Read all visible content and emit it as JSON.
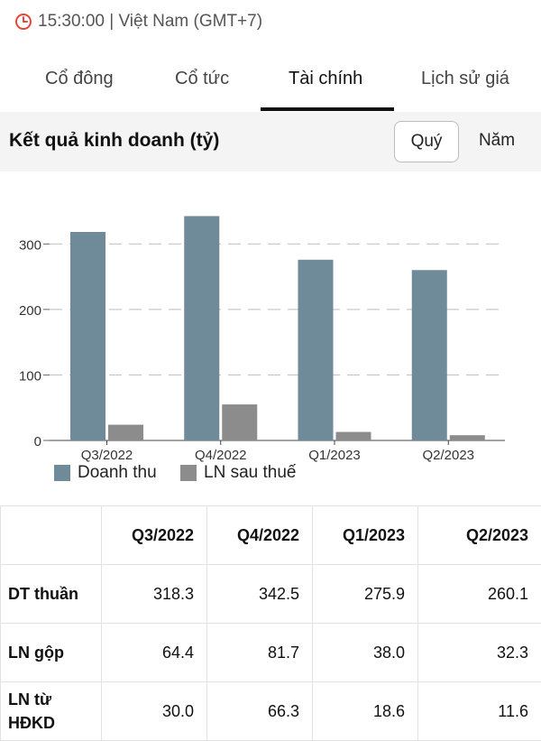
{
  "header": {
    "time_text": "15:30:00 | Việt Nam (GMT+7)",
    "clock_icon": "clock-icon",
    "accent_color": "#e8463b"
  },
  "tabs": [
    {
      "label": "Cổ đông",
      "active": false
    },
    {
      "label": "Cổ tức",
      "active": false
    },
    {
      "label": "Tài chính",
      "active": true
    },
    {
      "label": "Lịch sử giá",
      "active": false
    }
  ],
  "section": {
    "title": "Kết quả kinh doanh (tỷ)",
    "period_options": [
      {
        "label": "Quý",
        "selected": true
      },
      {
        "label": "Năm",
        "selected": false
      }
    ]
  },
  "chart_data": {
    "type": "bar",
    "categories": [
      "Q3/2022",
      "Q4/2022",
      "Q1/2023",
      "Q2/2023"
    ],
    "series": [
      {
        "name": "Doanh thu",
        "color": "#6f8a98",
        "values": [
          318.3,
          342.5,
          275.9,
          260.1
        ]
      },
      {
        "name": "LN sau thuế",
        "color": "#8c8c8c",
        "values": [
          24,
          55,
          13,
          8
        ]
      }
    ],
    "yticks": [
      0,
      100,
      200,
      300
    ],
    "ylim": [
      0,
      350
    ],
    "grid": true,
    "legend": "bottom-left"
  },
  "table": {
    "columns": [
      "Q3/2022",
      "Q4/2022",
      "Q1/2023",
      "Q2/2023"
    ],
    "rows": [
      {
        "label": "DT thuần",
        "values": [
          "318.3",
          "342.5",
          "275.9",
          "260.1"
        ]
      },
      {
        "label": "LN gộp",
        "values": [
          "64.4",
          "81.7",
          "38.0",
          "32.3"
        ]
      },
      {
        "label": "LN từ HĐKD",
        "values": [
          "30.0",
          "66.3",
          "18.6",
          "11.6"
        ]
      }
    ]
  }
}
